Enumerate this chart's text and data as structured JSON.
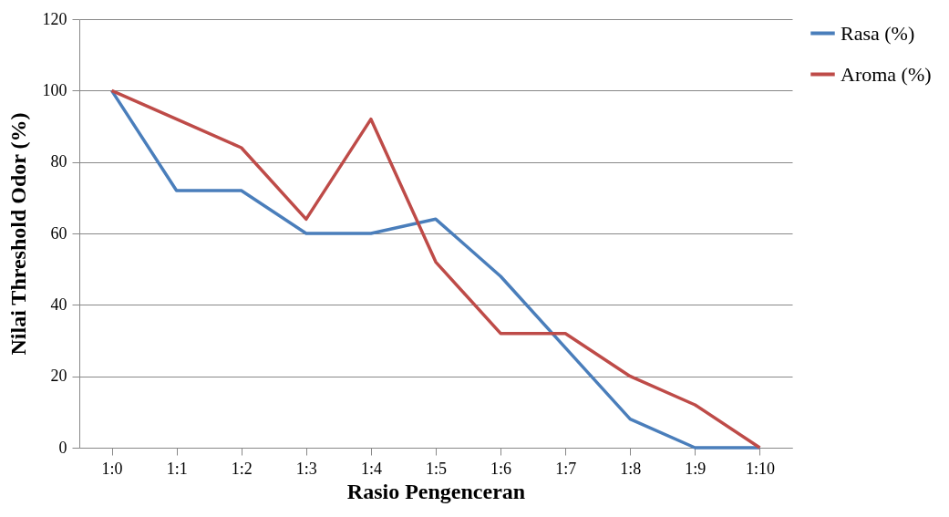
{
  "chart_data": {
    "type": "line",
    "xlabel": "Rasio Pengenceran",
    "ylabel": "Nilai Threshold Odor (%)",
    "categories": [
      "1:0",
      "1:1",
      "1:2",
      "1:3",
      "1:4",
      "1:5",
      "1:6",
      "1:7",
      "1:8",
      "1:9",
      "1:10"
    ],
    "series": [
      {
        "name": "Rasa (%)",
        "color": "#4a7ebb",
        "values": [
          100,
          72,
          72,
          60,
          60,
          64,
          48,
          28,
          8,
          0,
          0
        ]
      },
      {
        "name": "Aroma (%)",
        "color": "#be4b48",
        "values": [
          100,
          92,
          84,
          64,
          92,
          52,
          32,
          32,
          20,
          12,
          0
        ]
      }
    ],
    "ylim": [
      0,
      120
    ],
    "yticks": [
      0,
      20,
      40,
      60,
      80,
      100,
      120
    ],
    "grid": "y",
    "legend": "right",
    "marker": "none",
    "line_style": "solid"
  }
}
